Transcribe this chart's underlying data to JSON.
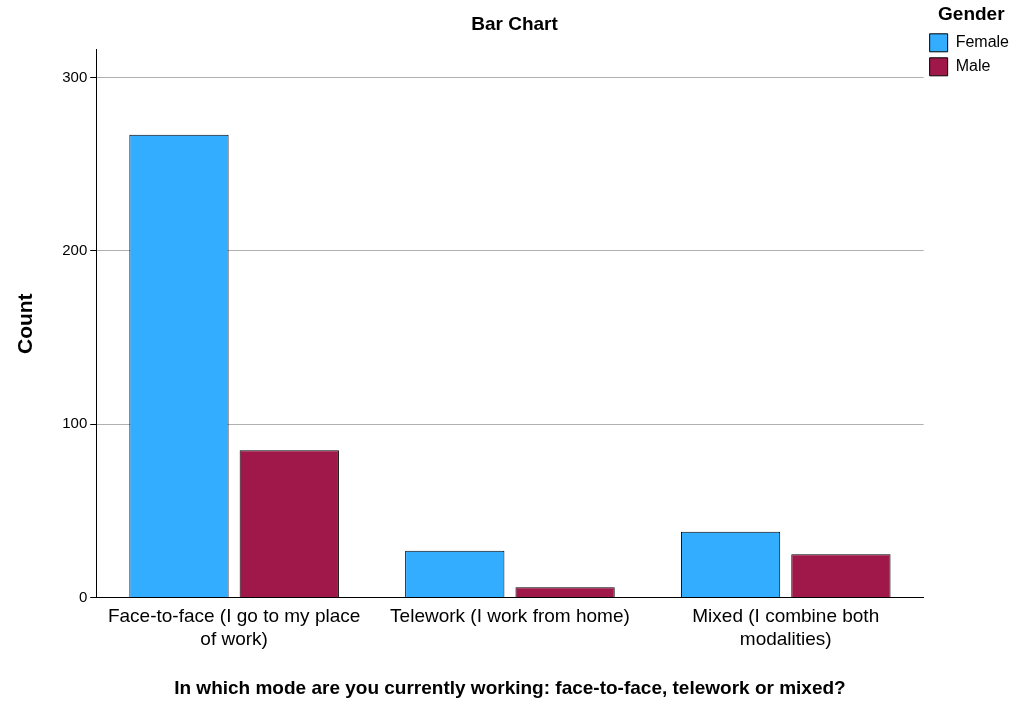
{
  "chart_data": {
    "type": "bar",
    "title": "Bar Chart",
    "xlabel": "In which mode are you currently working: face-to-face, telework or mixed?",
    "ylabel": "Count",
    "legend_title": "Gender",
    "categories": [
      "Face-to-face (I go to my place of work)",
      "Telework (I work from home)",
      "Mixed (I combine both modalities)"
    ],
    "series": [
      {
        "name": "Female",
        "color": "#33adff",
        "values": [
          267,
          27,
          38
        ]
      },
      {
        "name": "Male",
        "color": "#a0184a",
        "values": [
          85,
          6,
          25
        ]
      }
    ],
    "ylim": [
      0,
      316
    ],
    "yticks": [
      0,
      100,
      200,
      300
    ],
    "grid": "y",
    "legend": "top right"
  }
}
